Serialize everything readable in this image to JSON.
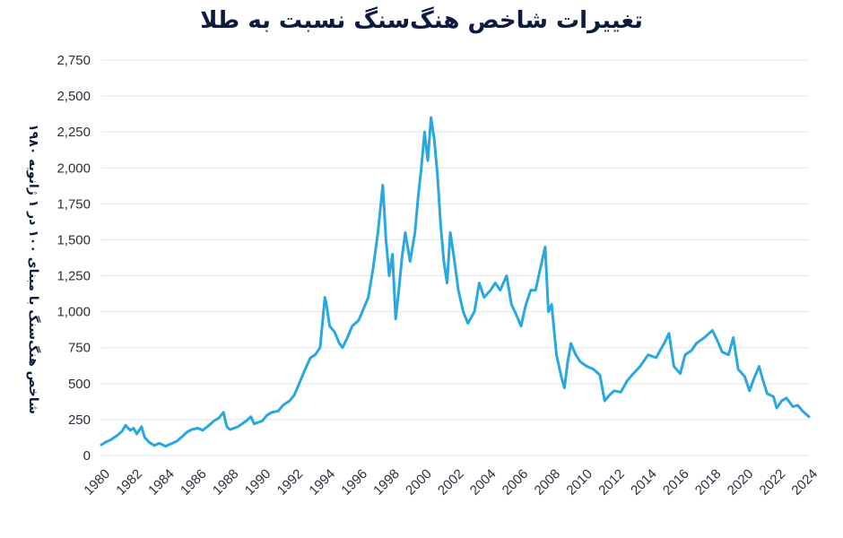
{
  "chart_data": {
    "type": "line",
    "title": "تغییرات شاخص هنگ‌سنگ نسبت به طلا",
    "ylabel": "شاخص هنگ‌سنگ با مبنای ۱۰۰ در ۱ ژانویه ۱۹۸۰",
    "xlabel": "",
    "xlim": [
      1980,
      2024
    ],
    "ylim": [
      0,
      2750
    ],
    "yticks": [
      0,
      250,
      500,
      750,
      1000,
      1250,
      1500,
      1750,
      2000,
      2250,
      2500,
      2750
    ],
    "ytick_labels": [
      "0",
      "250",
      "500",
      "750",
      "1,000",
      "1,250",
      "1,500",
      "1,750",
      "2,000",
      "2,250",
      "2,500",
      "2,750"
    ],
    "xticks": [
      1980,
      1982,
      1984,
      1986,
      1988,
      1990,
      1992,
      1994,
      1996,
      1998,
      2000,
      2002,
      2004,
      2006,
      2008,
      2010,
      2012,
      2014,
      2016,
      2018,
      2020,
      2022,
      2024
    ],
    "xtick_labels": [
      "1980",
      "1982",
      "1984",
      "1986",
      "1988",
      "1990",
      "1992",
      "1994",
      "1996",
      "1998",
      "2000",
      "2002",
      "2004",
      "2006",
      "2008",
      "2010",
      "2012",
      "2014",
      "2016",
      "2018",
      "2020",
      "2022",
      "2024"
    ],
    "grid": true,
    "line_color": "#29a8e0",
    "series": [
      {
        "x": [
          1980.0,
          1980.3,
          1980.6,
          1981.0,
          1981.3,
          1981.5,
          1981.8,
          1982.0,
          1982.2,
          1982.5,
          1982.7,
          1983.0,
          1983.3,
          1983.6,
          1984.0,
          1984.3,
          1984.7,
          1985.0,
          1985.3,
          1985.6,
          1986.0,
          1986.3,
          1986.7,
          1987.0,
          1987.3,
          1987.6,
          1987.8,
          1988.0,
          1988.5,
          1989.0,
          1989.3,
          1989.5,
          1990.0,
          1990.3,
          1990.6,
          1991.0,
          1991.3,
          1991.7,
          1992.0,
          1992.3,
          1992.6,
          1993.0,
          1993.3,
          1993.6,
          1993.9,
          1994.0,
          1994.2,
          1994.5,
          1994.8,
          1995.0,
          1995.3,
          1995.6,
          1996.0,
          1996.3,
          1996.6,
          1996.9,
          1997.2,
          1997.5,
          1997.7,
          1997.9,
          1998.1,
          1998.3,
          1998.5,
          1998.7,
          1998.9,
          1999.2,
          1999.5,
          1999.7,
          1999.9,
          2000.1,
          2000.3,
          2000.5,
          2000.7,
          2000.9,
          2001.1,
          2001.3,
          2001.5,
          2001.7,
          2001.9,
          2002.2,
          2002.5,
          2002.8,
          2003.2,
          2003.5,
          2003.8,
          2004.2,
          2004.5,
          2004.8,
          2005.2,
          2005.5,
          2005.8,
          2006.1,
          2006.4,
          2006.7,
          2007.0,
          2007.3,
          2007.6,
          2007.8,
          2008.0,
          2008.3,
          2008.6,
          2008.8,
          2009.0,
          2009.2,
          2009.5,
          2009.8,
          2010.2,
          2010.6,
          2011.0,
          2011.3,
          2011.6,
          2011.9,
          2012.3,
          2012.7,
          2013.0,
          2013.5,
          2014.0,
          2014.5,
          2015.0,
          2015.3,
          2015.6,
          2016.0,
          2016.3,
          2016.7,
          2017.0,
          2017.5,
          2018.0,
          2018.3,
          2018.6,
          2019.0,
          2019.3,
          2019.6,
          2020.0,
          2020.3,
          2020.6,
          2020.9,
          2021.1,
          2021.4,
          2021.8,
          2022.0,
          2022.3,
          2022.6,
          2023.0,
          2023.3,
          2023.6,
          2024.0
        ],
        "y": [
          75,
          95,
          110,
          140,
          170,
          210,
          175,
          190,
          150,
          200,
          125,
          90,
          70,
          85,
          65,
          80,
          100,
          130,
          160,
          180,
          190,
          175,
          210,
          240,
          260,
          300,
          200,
          180,
          200,
          240,
          270,
          220,
          240,
          280,
          300,
          310,
          350,
          380,
          420,
          500,
          580,
          680,
          700,
          750,
          1100,
          1050,
          900,
          860,
          780,
          750,
          820,
          900,
          940,
          1020,
          1100,
          1300,
          1550,
          1880,
          1500,
          1250,
          1400,
          950,
          1150,
          1380,
          1550,
          1350,
          1550,
          1800,
          2000,
          2250,
          2050,
          2350,
          2200,
          1950,
          1600,
          1350,
          1200,
          1550,
          1400,
          1150,
          1000,
          920,
          1000,
          1200,
          1100,
          1150,
          1200,
          1150,
          1250,
          1050,
          980,
          900,
          1050,
          1150,
          1150,
          1300,
          1450,
          1000,
          1050,
          700,
          550,
          470,
          650,
          780,
          700,
          650,
          620,
          600,
          560,
          380,
          420,
          450,
          440,
          520,
          560,
          620,
          700,
          680,
          780,
          850,
          620,
          570,
          700,
          730,
          780,
          820,
          870,
          800,
          720,
          700,
          820,
          600,
          550,
          450,
          540,
          620,
          540,
          430,
          410,
          330,
          380,
          400,
          340,
          350,
          310,
          270
        ]
      }
    ]
  }
}
